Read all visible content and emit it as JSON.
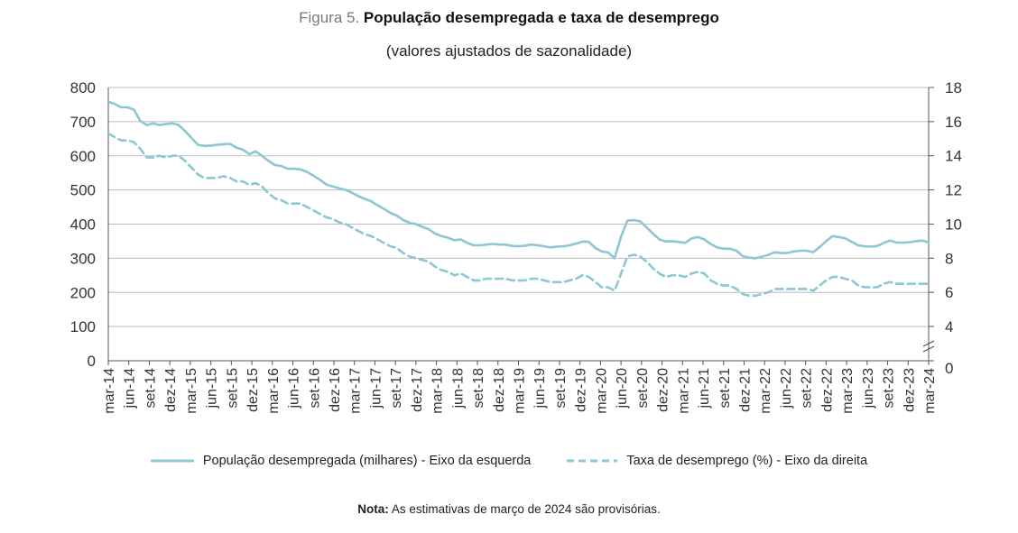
{
  "figure": {
    "prefix": "Figura 5.",
    "title": "População desempregada e taxa de desemprego",
    "subtitle": "(valores ajustados de sazonalidade)"
  },
  "note": {
    "label": "Nota:",
    "text": "As estimativas de março de 2024 são provisórias."
  },
  "legend": {
    "series1": "População desempregada (milhares) - Eixo da esquerda",
    "series2": "Taxa de desemprego (%) - Eixo da direita"
  },
  "colors": {
    "line": "#8cc7d3",
    "grid": "#bdbdbd",
    "axis": "#555555"
  },
  "chart_data": {
    "type": "line",
    "title": "População desempregada e taxa de desemprego",
    "subtitle": "(valores ajustados de sazonalidade)",
    "xlabel": "",
    "ylabel_left": "População desempregada (milhares)",
    "ylabel_right": "Taxa de desemprego (%)",
    "ylim_left": [
      0,
      800
    ],
    "ylim_right": [
      0,
      18
    ],
    "yticks_left": [
      "800",
      "700",
      "600",
      "500",
      "400",
      "300",
      "200",
      "100",
      "0"
    ],
    "yticks_right": [
      "18",
      "16",
      "14",
      "12",
      "10",
      "8",
      "6",
      "4",
      "0"
    ],
    "right_axis_break": "between 0 and 4",
    "grid": "horizontal",
    "legend_position": "bottom",
    "x_tick_labels": [
      "mar-14",
      "jun-14",
      "set-14",
      "dez-14",
      "mar-15",
      "jun-15",
      "set-15",
      "dez-15",
      "mar-16",
      "jun-16",
      "set-16",
      "dez-16",
      "mar-17",
      "jun-17",
      "set-17",
      "dez-17",
      "mar-18",
      "jun-18",
      "set-18",
      "dez-18",
      "mar-19",
      "jun-19",
      "set-19",
      "dez-19",
      "mar-20",
      "jun-20",
      "set-20",
      "dez-20",
      "mar-21",
      "jun-21",
      "set-21",
      "dez-21",
      "mar-22",
      "jun-22",
      "set-22",
      "dez-22",
      "mar-23",
      "jun-23",
      "set-23",
      "dez-23",
      "mar-24"
    ],
    "series": [
      {
        "name": "População desempregada (milhares) - Eixo da esquerda",
        "axis": "left",
        "style": "solid",
        "values": [
          758,
          752,
          742,
          742,
          735,
          702,
          690,
          695,
          690,
          693,
          695,
          690,
          672,
          652,
          632,
          629,
          630,
          632,
          634,
          635,
          624,
          618,
          605,
          613,
          600,
          585,
          573,
          570,
          562,
          562,
          560,
          553,
          542,
          530,
          516,
          510,
          505,
          500,
          492,
          482,
          474,
          467,
          455,
          445,
          433,
          425,
          412,
          404,
          400,
          392,
          385,
          372,
          365,
          360,
          353,
          355,
          345,
          338,
          338,
          340,
          342,
          340,
          340,
          336,
          335,
          337,
          340,
          338,
          335,
          332,
          334,
          335,
          338,
          343,
          349,
          348,
          330,
          320,
          317,
          300,
          363,
          410,
          412,
          408,
          390,
          372,
          355,
          349,
          350,
          348,
          345,
          358,
          362,
          355,
          342,
          332,
          328,
          328,
          322,
          306,
          302,
          300,
          305,
          310,
          318,
          315,
          316,
          320,
          322,
          322,
          318,
          333,
          350,
          365,
          362,
          358,
          348,
          338,
          335,
          334,
          336,
          345,
          352,
          346,
          346,
          347,
          350,
          352,
          347
        ]
      },
      {
        "name": "Taxa de desemprego (%) - Eixo da direita",
        "axis": "right",
        "style": "dashed",
        "values": [
          15.3,
          15.1,
          14.9,
          14.9,
          14.8,
          14.4,
          13.9,
          13.9,
          14.0,
          13.9,
          14.0,
          14.0,
          13.7,
          13.3,
          12.9,
          12.7,
          12.7,
          12.7,
          12.8,
          12.7,
          12.5,
          12.5,
          12.3,
          12.4,
          12.2,
          11.8,
          11.5,
          11.4,
          11.2,
          11.2,
          11.2,
          11.0,
          10.8,
          10.6,
          10.4,
          10.3,
          10.1,
          10.0,
          9.8,
          9.6,
          9.4,
          9.3,
          9.1,
          8.9,
          8.7,
          8.6,
          8.3,
          8.1,
          8.0,
          7.9,
          7.8,
          7.5,
          7.3,
          7.2,
          7.0,
          7.1,
          6.9,
          6.7,
          6.7,
          6.8,
          6.8,
          6.8,
          6.8,
          6.7,
          6.7,
          6.7,
          6.8,
          6.8,
          6.7,
          6.6,
          6.6,
          6.6,
          6.7,
          6.8,
          7.0,
          6.9,
          6.6,
          6.3,
          6.3,
          6.1,
          7.1,
          8.1,
          8.2,
          8.1,
          7.8,
          7.4,
          7.1,
          6.9,
          7.0,
          7.0,
          6.9,
          7.1,
          7.2,
          7.1,
          6.7,
          6.5,
          6.4,
          6.4,
          6.2,
          5.9,
          5.8,
          5.8,
          5.9,
          6.0,
          6.2,
          6.2,
          6.2,
          6.2,
          6.2,
          6.2,
          6.1,
          6.4,
          6.7,
          6.9,
          6.9,
          6.8,
          6.7,
          6.4,
          6.3,
          6.3,
          6.3,
          6.5,
          6.6,
          6.5,
          6.5,
          6.5,
          6.5,
          6.5,
          6.5
        ]
      }
    ]
  }
}
